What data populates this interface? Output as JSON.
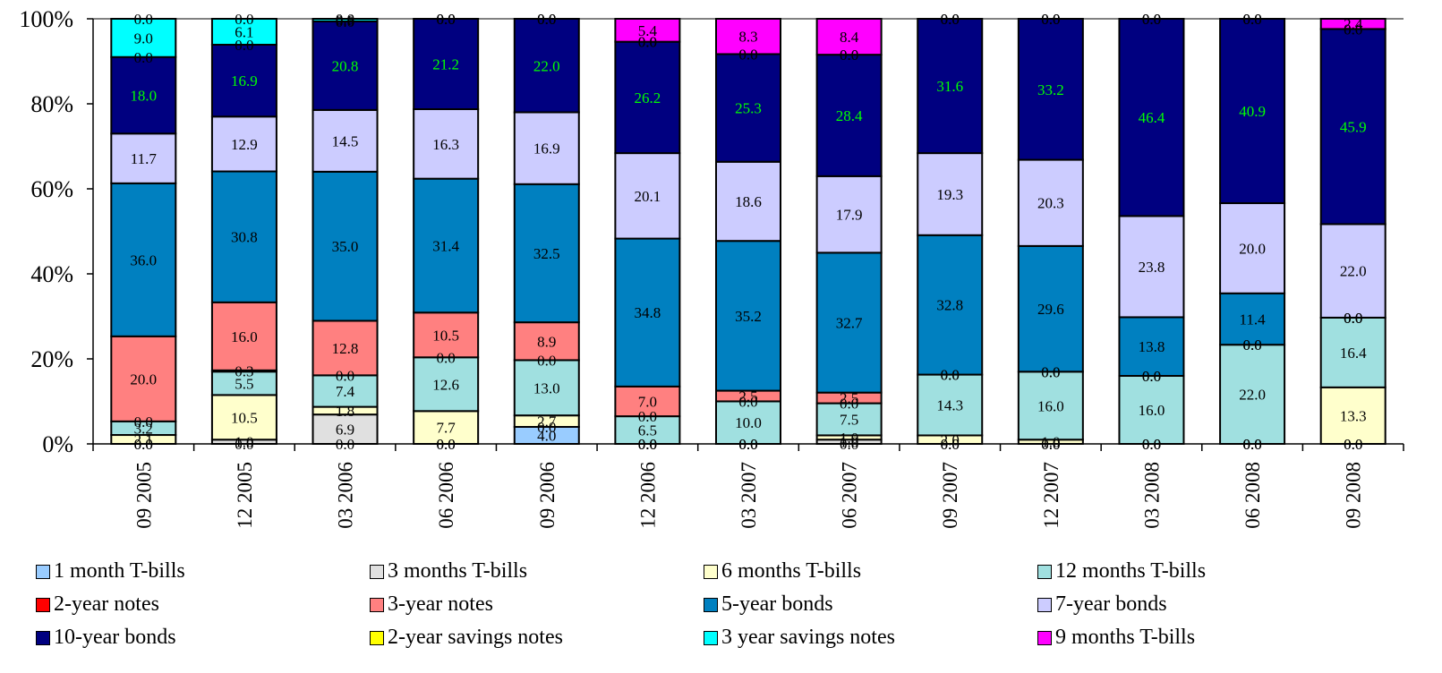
{
  "chart_data": {
    "type": "bar",
    "stacked": true,
    "percent": true,
    "categories": [
      "09 2005",
      "12 2005",
      "03 2006",
      "06 2006",
      "09 2006",
      "12 2006",
      "03 2007",
      "06 2007",
      "09 2007",
      "12 2007",
      "03 2008",
      "06 2008",
      "09 2008"
    ],
    "y_ticks": [
      "0%",
      "20%",
      "40%",
      "60%",
      "80%",
      "100%"
    ],
    "ylim": [
      0,
      100
    ],
    "legend_position": "bottom",
    "series": [
      {
        "name": "1 month T-bills",
        "color": "#99ccff",
        "label_color": "#000000",
        "values": [
          0.0,
          0.0,
          0.0,
          0.0,
          4.0,
          0.0,
          0.0,
          0.0,
          0.0,
          0.0,
          0.0,
          0.0,
          0.0
        ]
      },
      {
        "name": "3 months T-bills",
        "color": "#e0e0e0",
        "label_color": "#000000",
        "values": [
          0.0,
          1.0,
          6.9,
          0.0,
          0.0,
          0.0,
          0.0,
          1.0,
          0.0,
          0.0,
          0.0,
          0.0,
          0.0
        ]
      },
      {
        "name": "6 months T-bills",
        "color": "#ffffcc",
        "label_color": "#000000",
        "values": [
          2.1,
          10.5,
          1.8,
          7.7,
          2.7,
          0.0,
          0.0,
          1.0,
          2.0,
          1.0,
          0.0,
          0.0,
          13.3
        ]
      },
      {
        "name": "12 months T-bills",
        "color": "#a0e0e0",
        "label_color": "#000000",
        "values": [
          3.2,
          5.5,
          7.4,
          12.6,
          13.0,
          6.5,
          10.0,
          7.5,
          14.3,
          16.0,
          16.0,
          22.0,
          16.4
        ]
      },
      {
        "name": "2-year notes",
        "color": "#ff0000",
        "label_color": "#000000",
        "values": [
          0.0,
          0.3,
          0.0,
          0.0,
          0.0,
          0.0,
          0.0,
          0.0,
          0.0,
          0.0,
          0.0,
          0.0,
          0.0
        ]
      },
      {
        "name": "3-year notes",
        "color": "#ff8080",
        "label_color": "#000000",
        "values": [
          20.0,
          16.0,
          12.8,
          10.5,
          8.9,
          7.0,
          2.5,
          2.5,
          0.0,
          0.0,
          0.0,
          0.0,
          0.0
        ]
      },
      {
        "name": "5-year bonds",
        "color": "#0080c0",
        "label_color": "#000000",
        "values": [
          36.0,
          30.8,
          35.0,
          31.4,
          32.5,
          34.8,
          35.2,
          32.7,
          32.8,
          29.6,
          13.8,
          11.4,
          0.0
        ]
      },
      {
        "name": "7-year bonds",
        "color": "#ccccff",
        "label_color": "#000000",
        "values": [
          11.7,
          12.9,
          14.5,
          16.3,
          16.9,
          20.1,
          18.6,
          17.9,
          19.3,
          20.3,
          23.8,
          20.0,
          22.0
        ]
      },
      {
        "name": "10-year bonds",
        "color": "#000080",
        "label_color": "#00ff00",
        "values": [
          18.0,
          16.9,
          20.8,
          21.2,
          22.0,
          26.2,
          25.3,
          28.4,
          31.6,
          33.2,
          46.4,
          40.9,
          45.9
        ]
      },
      {
        "name": "2-year savings notes",
        "color": "#ffff00",
        "label_color": "#000000",
        "values": [
          0.0,
          0.0,
          0.0,
          0.0,
          0.0,
          0.0,
          0.0,
          0.0,
          0.0,
          0.0,
          0.0,
          0.0,
          0.0
        ]
      },
      {
        "name": "3 year savings notes",
        "color": "#00ffff",
        "label_color": "#000000",
        "values": [
          9.0,
          6.1,
          0.6,
          0.0,
          0.0,
          0.0,
          0.0,
          0.0,
          0.0,
          0.0,
          0.0,
          0.0,
          0.0
        ]
      },
      {
        "name": "9 months T-bills",
        "color": "#ff00ff",
        "label_color": "#000000",
        "values": [
          0.0,
          0.0,
          0.0,
          0.0,
          0.0,
          5.4,
          8.3,
          8.4,
          0.0,
          0.0,
          0.0,
          0.0,
          2.4
        ]
      }
    ]
  }
}
